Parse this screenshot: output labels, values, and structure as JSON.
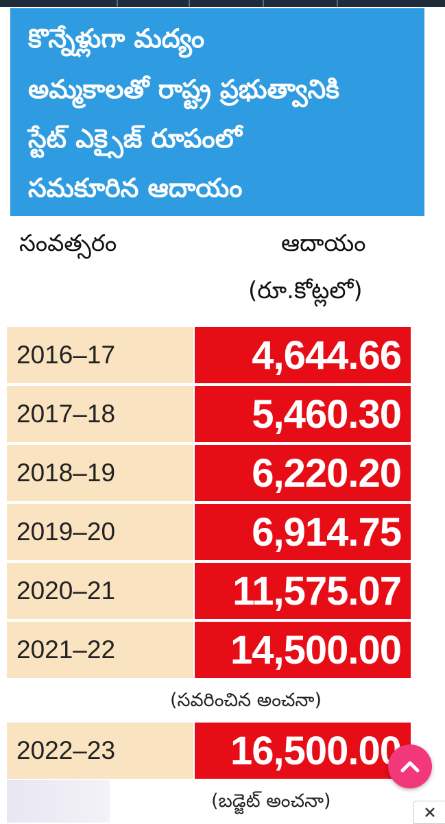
{
  "header": {
    "lines": [
      "కొన్నేళ్లుగా మద్యం",
      "అమ్మకాలతో రాష్ట్ర ప్రభుత్వానికి",
      "స్టేట్ ఎక్సైజ్ రూపంలో",
      "సమకూరిన ఆదాయం"
    ]
  },
  "columns": {
    "year": "సంవత్సరం",
    "revenue": "ఆదాయం",
    "unit": "(రూ.కోట్లలో)"
  },
  "notes": {
    "revised": "(సవరించిన అంచనా)",
    "budget": "(బడ్జెట్ అంచనా)"
  },
  "chart_data": {
    "type": "table",
    "title": "కొన్నేళ్లుగా మద్యం అమ్మకాలతో రాష్ట్ర ప్రభుత్వానికి స్టేట్ ఎక్సైజ్ రూపంలో సమకూరిన ఆదాయం",
    "columns": [
      "సంవత్సరం",
      "ఆదాయం (రూ.కోట్లలో)"
    ],
    "rows": [
      {
        "year": "2016–17",
        "value_label": "4,644.66",
        "value": 4644.66
      },
      {
        "year": "2017–18",
        "value_label": "5,460.30",
        "value": 5460.3
      },
      {
        "year": "2018–19",
        "value_label": "6,220.20",
        "value": 6220.2
      },
      {
        "year": "2019–20",
        "value_label": "6,914.75",
        "value": 6914.75
      },
      {
        "year": "2020–21",
        "value_label": "11,575.07",
        "value": 11575.07
      },
      {
        "year": "2021–22",
        "value_label": "14,500.00",
        "value": 14500.0
      },
      {
        "year": "2022–23",
        "value_label": "16,500.00",
        "value": 16500.0
      }
    ]
  },
  "colors": {
    "header_bg": "#2f9be0",
    "year_cell": "#f9e3c0",
    "value_cell": "#e60d17",
    "scroll_button": "#f2387a"
  },
  "icons": {
    "scroll_top": "chevron-up-icon",
    "close": "close-icon"
  }
}
